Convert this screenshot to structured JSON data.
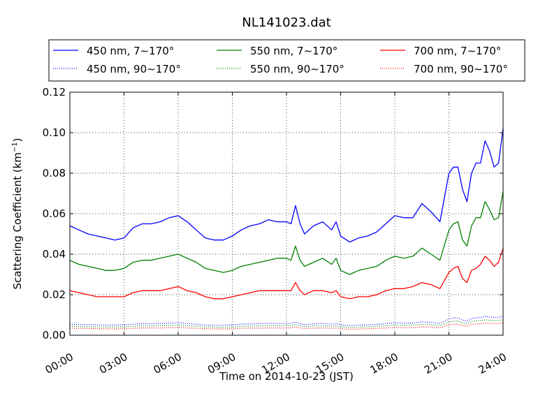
{
  "chart_data": {
    "type": "line",
    "title": "NL141023.dat",
    "xlabel": "Time on 2014-10-23 (JST)",
    "ylabel": "Scattering Coefficient (km",
    "ylabel_sup": "−1",
    "ylabel_close": ")",
    "xlim": [
      "00:00",
      "24:00"
    ],
    "ylim": [
      0.0,
      0.12
    ],
    "x_ticks": [
      "00:00",
      "03:00",
      "06:00",
      "09:00",
      "12:00",
      "15:00",
      "18:00",
      "21:00",
      "24:00"
    ],
    "y_ticks": [
      "0.00",
      "0.02",
      "0.04",
      "0.06",
      "0.08",
      "0.10",
      "0.12"
    ],
    "grid": true,
    "legend_position": "top",
    "x_hours": [
      0,
      0.5,
      1,
      1.5,
      2,
      2.5,
      3,
      3.5,
      4,
      4.5,
      5,
      5.5,
      6,
      6.5,
      7,
      7.5,
      8,
      8.5,
      9,
      9.5,
      10,
      10.5,
      11,
      11.5,
      12,
      12.25,
      12.5,
      12.75,
      13,
      13.5,
      14,
      14.5,
      14.75,
      15,
      15.5,
      16,
      16.5,
      17,
      17.5,
      18,
      18.5,
      19,
      19.5,
      20,
      20.5,
      21,
      21.25,
      21.5,
      21.75,
      22,
      22.25,
      22.5,
      22.75,
      23,
      23.25,
      23.5,
      23.75,
      24
    ],
    "series": [
      {
        "name": "450 nm, 7∼170°",
        "color": "#0000ff",
        "style": "solid",
        "values": [
          0.054,
          0.052,
          0.05,
          0.049,
          0.048,
          0.047,
          0.048,
          0.053,
          0.055,
          0.055,
          0.056,
          0.058,
          0.059,
          0.056,
          0.052,
          0.048,
          0.047,
          0.047,
          0.049,
          0.052,
          0.054,
          0.055,
          0.057,
          0.056,
          0.056,
          0.055,
          0.064,
          0.055,
          0.05,
          0.054,
          0.056,
          0.052,
          0.056,
          0.049,
          0.046,
          0.048,
          0.049,
          0.051,
          0.055,
          0.059,
          0.058,
          0.058,
          0.065,
          0.061,
          0.056,
          0.08,
          0.083,
          0.083,
          0.072,
          0.066,
          0.08,
          0.085,
          0.085,
          0.096,
          0.091,
          0.083,
          0.085,
          0.102
        ]
      },
      {
        "name": "550 nm, 7∼170°",
        "color": "#008000",
        "style": "solid",
        "values": [
          0.037,
          0.035,
          0.034,
          0.033,
          0.032,
          0.032,
          0.033,
          0.036,
          0.037,
          0.037,
          0.038,
          0.039,
          0.04,
          0.038,
          0.036,
          0.033,
          0.032,
          0.031,
          0.032,
          0.034,
          0.035,
          0.036,
          0.037,
          0.038,
          0.038,
          0.037,
          0.044,
          0.037,
          0.034,
          0.036,
          0.038,
          0.035,
          0.038,
          0.032,
          0.03,
          0.032,
          0.033,
          0.034,
          0.037,
          0.039,
          0.038,
          0.039,
          0.043,
          0.04,
          0.037,
          0.052,
          0.055,
          0.056,
          0.047,
          0.044,
          0.054,
          0.058,
          0.058,
          0.066,
          0.062,
          0.057,
          0.058,
          0.071
        ]
      },
      {
        "name": "700 nm, 7∼170°",
        "color": "#ff0000",
        "style": "solid",
        "values": [
          0.022,
          0.021,
          0.02,
          0.019,
          0.019,
          0.019,
          0.019,
          0.021,
          0.022,
          0.022,
          0.022,
          0.023,
          0.024,
          0.022,
          0.021,
          0.019,
          0.018,
          0.018,
          0.019,
          0.02,
          0.021,
          0.022,
          0.022,
          0.022,
          0.022,
          0.022,
          0.026,
          0.022,
          0.02,
          0.022,
          0.022,
          0.021,
          0.022,
          0.019,
          0.018,
          0.019,
          0.019,
          0.02,
          0.022,
          0.023,
          0.023,
          0.024,
          0.026,
          0.025,
          0.023,
          0.031,
          0.033,
          0.034,
          0.028,
          0.026,
          0.032,
          0.033,
          0.035,
          0.039,
          0.037,
          0.034,
          0.036,
          0.043
        ]
      },
      {
        "name": "450 nm, 90∼170°",
        "color": "#0000ff",
        "style": "dotted",
        "values": [
          0.0055,
          0.0053,
          0.0052,
          0.0051,
          0.005,
          0.005,
          0.0051,
          0.0055,
          0.0057,
          0.0057,
          0.0058,
          0.006,
          0.0061,
          0.0058,
          0.0054,
          0.005,
          0.0049,
          0.0049,
          0.0051,
          0.0054,
          0.0056,
          0.0057,
          0.0059,
          0.0058,
          0.0058,
          0.0057,
          0.0065,
          0.0057,
          0.0052,
          0.0056,
          0.0058,
          0.0054,
          0.0058,
          0.0051,
          0.0048,
          0.005,
          0.0051,
          0.0053,
          0.0057,
          0.0061,
          0.006,
          0.006,
          0.0066,
          0.0063,
          0.0058,
          0.008,
          0.0085,
          0.0086,
          0.0075,
          0.007,
          0.0082,
          0.0087,
          0.0087,
          0.0093,
          0.009,
          0.0087,
          0.0088,
          0.0095
        ]
      },
      {
        "name": "550 nm, 90∼170°",
        "color": "#008000",
        "style": "dotted",
        "values": [
          0.0045,
          0.0043,
          0.0042,
          0.0041,
          0.004,
          0.004,
          0.0041,
          0.0044,
          0.0046,
          0.0046,
          0.0047,
          0.0048,
          0.0049,
          0.0047,
          0.0044,
          0.0041,
          0.004,
          0.0039,
          0.0041,
          0.0043,
          0.0045,
          0.0046,
          0.0047,
          0.0047,
          0.0047,
          0.0046,
          0.0053,
          0.0046,
          0.0042,
          0.0045,
          0.0047,
          0.0044,
          0.0047,
          0.0041,
          0.0039,
          0.004,
          0.0041,
          0.0043,
          0.0046,
          0.0049,
          0.0048,
          0.0049,
          0.0053,
          0.0051,
          0.0047,
          0.0065,
          0.0069,
          0.007,
          0.0061,
          0.0057,
          0.0067,
          0.0071,
          0.0071,
          0.0076,
          0.0073,
          0.0071,
          0.0072,
          0.0078
        ]
      },
      {
        "name": "700 nm, 90∼170°",
        "color": "#ff0000",
        "style": "dotted",
        "values": [
          0.0035,
          0.0034,
          0.0033,
          0.0032,
          0.0032,
          0.0031,
          0.0032,
          0.0034,
          0.0036,
          0.0036,
          0.0036,
          0.0037,
          0.0038,
          0.0036,
          0.0034,
          0.0032,
          0.0031,
          0.0031,
          0.0032,
          0.0034,
          0.0035,
          0.0035,
          0.0036,
          0.0036,
          0.0036,
          0.0036,
          0.0041,
          0.0036,
          0.0033,
          0.0035,
          0.0036,
          0.0034,
          0.0036,
          0.0032,
          0.003,
          0.0031,
          0.0032,
          0.0033,
          0.0036,
          0.0038,
          0.0037,
          0.0038,
          0.0041,
          0.004,
          0.0036,
          0.0051,
          0.0054,
          0.0055,
          0.0048,
          0.0045,
          0.0053,
          0.0056,
          0.0056,
          0.006,
          0.0058,
          0.0056,
          0.0057,
          0.0062
        ]
      }
    ],
    "legend_order": [
      0,
      1,
      2,
      3,
      4,
      5
    ]
  }
}
